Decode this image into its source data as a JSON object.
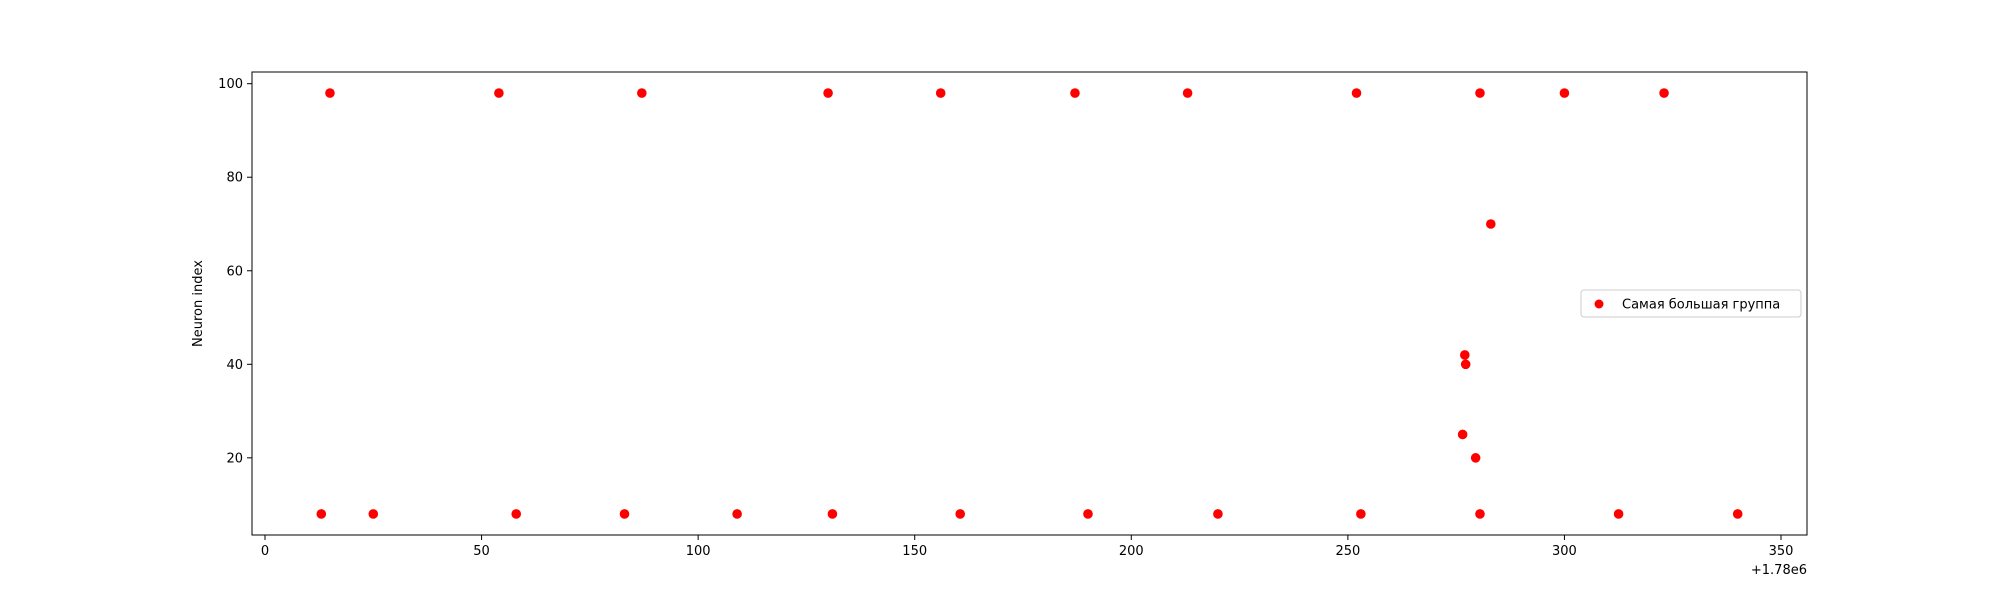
{
  "chart_data": {
    "type": "scatter",
    "title": "",
    "xlabel": "",
    "ylabel": "Neuron index",
    "x_offset_label": "+1.78e6",
    "xlim": [
      1779997,
      1780356
    ],
    "ylim": [
      3.5,
      102.5
    ],
    "x_ticks": [
      1780000,
      1780050,
      1780100,
      1780150,
      1780200,
      1780250,
      1780300,
      1780350
    ],
    "x_tick_labels": [
      "0",
      "50",
      "100",
      "150",
      "200",
      "250",
      "300",
      "350"
    ],
    "y_ticks": [
      20,
      40,
      60,
      80,
      100
    ],
    "y_tick_labels": [
      "20",
      "40",
      "60",
      "80",
      "100"
    ],
    "grid": false,
    "legend_position": "center-right",
    "series": [
      {
        "name": "Самая большая группа",
        "color": "#ff0000",
        "marker": "circle",
        "points": [
          [
            1780015,
            98
          ],
          [
            1780054,
            98
          ],
          [
            1780087,
            98
          ],
          [
            1780130,
            98
          ],
          [
            1780156,
            98
          ],
          [
            1780187,
            98
          ],
          [
            1780213,
            98
          ],
          [
            1780252,
            98
          ],
          [
            1780280.5,
            98
          ],
          [
            1780300,
            98
          ],
          [
            1780323,
            98
          ],
          [
            1780283,
            70
          ],
          [
            1780277,
            42
          ],
          [
            1780277.2,
            40
          ],
          [
            1780276.5,
            25
          ],
          [
            1780279.5,
            20
          ],
          [
            1780013,
            8
          ],
          [
            1780025,
            8
          ],
          [
            1780058,
            8
          ],
          [
            1780083,
            8
          ],
          [
            1780109,
            8
          ],
          [
            1780131,
            8
          ],
          [
            1780160.5,
            8
          ],
          [
            1780190,
            8
          ],
          [
            1780220,
            8
          ],
          [
            1780253,
            8
          ],
          [
            1780280.5,
            8
          ],
          [
            1780312.5,
            8
          ],
          [
            1780340,
            8
          ]
        ]
      }
    ]
  }
}
